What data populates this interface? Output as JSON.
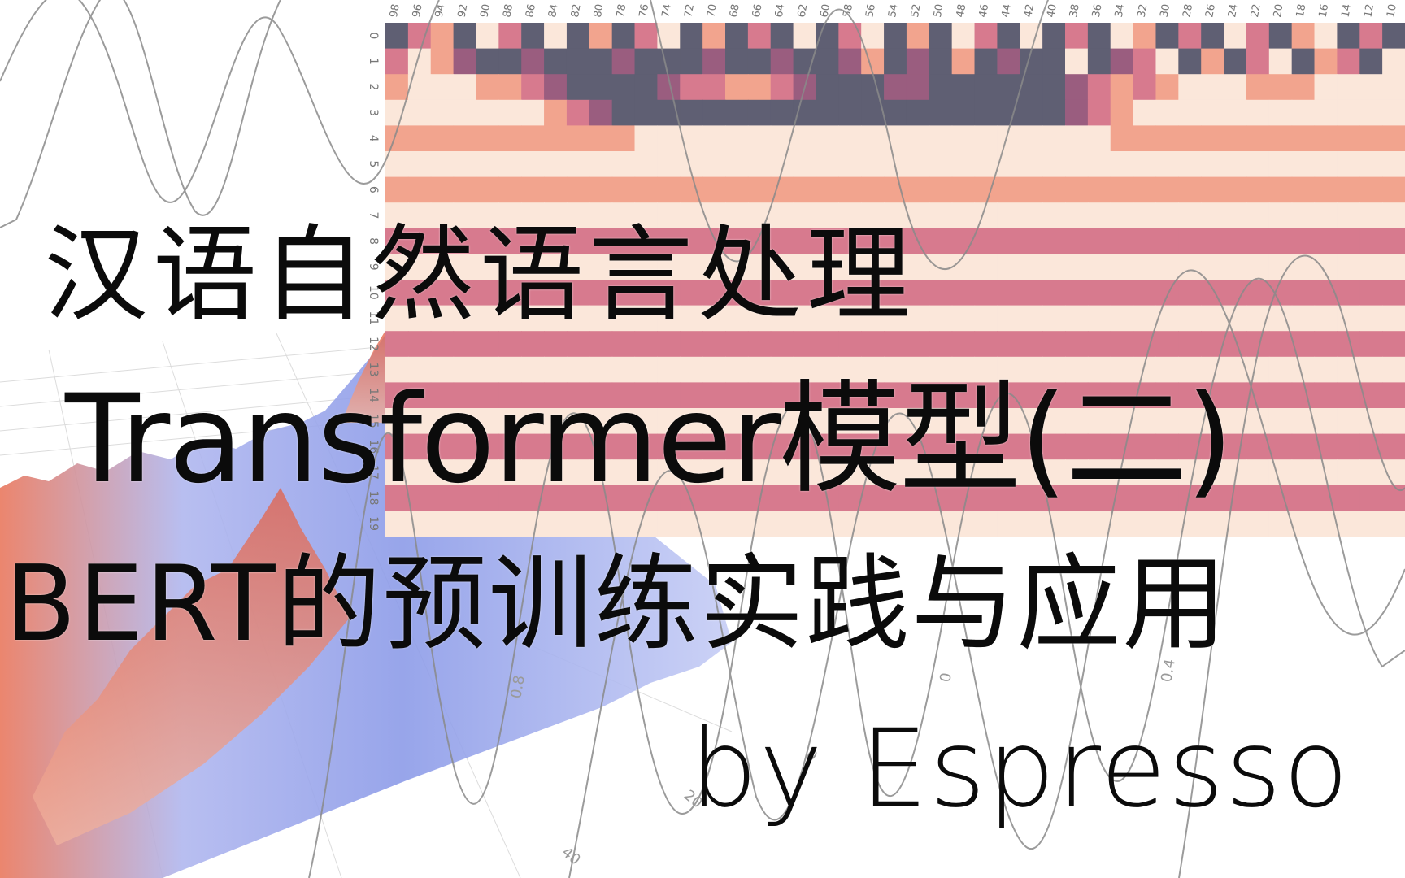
{
  "titles": {
    "line1": "汉语自然语言处理",
    "line2": "Transformer模型(二)",
    "line3": "BERT的预训练实践与应用"
  },
  "byline": "by Espresso",
  "heatmap": {
    "col_ticks": [
      "98",
      "96",
      "94",
      "92",
      "90",
      "88",
      "86",
      "84",
      "82",
      "80",
      "78",
      "76",
      "74",
      "72",
      "70",
      "68",
      "66",
      "64",
      "62",
      "60",
      "58",
      "56",
      "54",
      "52",
      "50",
      "48",
      "46",
      "44",
      "42",
      "40",
      "38",
      "36",
      "34",
      "32",
      "30",
      "28",
      "26",
      "24",
      "22",
      "20",
      "18",
      "16",
      "14",
      "12",
      "10"
    ],
    "row_ticks": [
      "0",
      "1",
      "2",
      "3",
      "4",
      "5",
      "6",
      "7",
      "8",
      "9",
      "10",
      "11",
      "12",
      "13",
      "14",
      "15",
      "16",
      "17",
      "18",
      "19"
    ],
    "palette": [
      "#5f5f73",
      "#9a5d7f",
      "#d77a8e",
      "#f2a48e",
      "#fbe7da"
    ],
    "row_levels": [
      [
        0,
        2,
        3,
        0,
        4,
        2,
        0,
        4,
        0,
        3,
        0,
        2,
        4,
        0,
        3,
        0,
        2,
        0,
        4,
        0,
        2,
        4,
        0,
        3,
        0,
        4,
        2,
        0,
        4,
        0,
        2,
        0,
        4,
        3,
        0,
        2,
        0,
        4,
        2,
        0,
        3,
        4,
        0,
        2,
        0
      ],
      [
        2,
        4,
        3,
        1,
        0,
        0,
        1,
        0,
        0,
        0,
        1,
        0,
        0,
        0,
        1,
        0,
        0,
        1,
        0,
        0,
        1,
        3,
        0,
        1,
        0,
        3,
        0,
        1,
        0,
        0,
        4,
        0,
        1,
        2,
        4,
        0,
        3,
        0,
        2,
        4,
        0,
        3,
        2,
        0,
        4
      ],
      [
        3,
        4,
        4,
        4,
        3,
        3,
        2,
        1,
        0,
        0,
        0,
        0,
        1,
        2,
        2,
        3,
        3,
        2,
        1,
        0,
        0,
        0,
        1,
        1,
        0,
        0,
        0,
        0,
        0,
        0,
        1,
        2,
        3,
        2,
        3,
        4,
        4,
        4,
        3,
        3,
        3,
        4,
        4,
        4,
        4
      ],
      [
        4,
        4,
        4,
        4,
        4,
        4,
        4,
        3,
        2,
        1,
        0,
        0,
        0,
        0,
        0,
        0,
        0,
        0,
        0,
        0,
        0,
        0,
        0,
        0,
        0,
        0,
        0,
        0,
        0,
        0,
        1,
        2,
        3,
        4,
        4,
        4,
        4,
        4,
        4,
        4,
        4,
        4,
        4,
        4,
        4
      ],
      [
        3,
        3,
        3,
        3,
        3,
        3,
        3,
        3,
        3,
        3,
        3,
        4,
        4,
        4,
        4,
        4,
        4,
        4,
        4,
        4,
        4,
        4,
        4,
        4,
        4,
        4,
        4,
        4,
        4,
        4,
        4,
        4,
        3,
        3,
        3,
        3,
        3,
        3,
        3,
        3,
        3,
        3,
        3,
        3,
        3
      ],
      [
        4,
        4,
        4,
        4,
        4,
        4,
        4,
        4,
        4,
        4,
        4,
        4,
        4,
        4,
        4,
        4,
        4,
        4,
        4,
        4,
        4,
        4,
        4,
        4,
        4,
        4,
        4,
        4,
        4,
        4,
        4,
        4,
        4,
        4,
        4,
        4,
        4,
        4,
        4,
        4,
        4,
        4,
        4,
        4,
        4
      ],
      [
        3,
        3,
        3,
        3,
        3,
        3,
        3,
        3,
        3,
        3,
        3,
        3,
        3,
        3,
        3,
        3,
        3,
        3,
        3,
        3,
        3,
        3,
        3,
        3,
        3,
        3,
        3,
        3,
        3,
        3,
        3,
        3,
        3,
        3,
        3,
        3,
        3,
        3,
        3,
        3,
        3,
        3,
        3,
        3,
        3
      ],
      [
        4,
        4,
        4,
        4,
        4,
        4,
        4,
        4,
        4,
        4,
        4,
        4,
        4,
        4,
        4,
        4,
        4,
        4,
        4,
        4,
        4,
        4,
        4,
        4,
        4,
        4,
        4,
        4,
        4,
        4,
        4,
        4,
        4,
        4,
        4,
        4,
        4,
        4,
        4,
        4,
        4,
        4,
        4,
        4,
        4
      ],
      [
        2,
        2,
        2,
        2,
        2,
        2,
        2,
        2,
        2,
        2,
        2,
        2,
        2,
        2,
        2,
        2,
        2,
        2,
        2,
        2,
        2,
        2,
        2,
        2,
        2,
        2,
        2,
        2,
        2,
        2,
        2,
        2,
        2,
        2,
        2,
        2,
        2,
        2,
        2,
        2,
        2,
        2,
        2,
        2,
        2
      ],
      [
        4,
        4,
        4,
        4,
        4,
        4,
        4,
        4,
        4,
        4,
        4,
        4,
        4,
        4,
        4,
        4,
        4,
        4,
        4,
        4,
        4,
        4,
        4,
        4,
        4,
        4,
        4,
        4,
        4,
        4,
        4,
        4,
        4,
        4,
        4,
        4,
        4,
        4,
        4,
        4,
        4,
        4,
        4,
        4,
        4
      ],
      [
        2,
        2,
        2,
        2,
        2,
        2,
        2,
        2,
        2,
        2,
        2,
        2,
        2,
        2,
        2,
        2,
        2,
        2,
        2,
        2,
        2,
        2,
        2,
        2,
        2,
        2,
        2,
        2,
        2,
        2,
        2,
        2,
        2,
        2,
        2,
        2,
        2,
        2,
        2,
        2,
        2,
        2,
        2,
        2,
        2
      ],
      [
        4,
        4,
        4,
        4,
        4,
        4,
        4,
        4,
        4,
        4,
        4,
        4,
        4,
        4,
        4,
        4,
        4,
        4,
        4,
        4,
        4,
        4,
        4,
        4,
        4,
        4,
        4,
        4,
        4,
        4,
        4,
        4,
        4,
        4,
        4,
        4,
        4,
        4,
        4,
        4,
        4,
        4,
        4,
        4,
        4
      ],
      [
        2,
        2,
        2,
        2,
        2,
        2,
        2,
        2,
        2,
        2,
        2,
        2,
        2,
        2,
        2,
        2,
        2,
        2,
        2,
        2,
        2,
        2,
        2,
        2,
        2,
        2,
        2,
        2,
        2,
        2,
        2,
        2,
        2,
        2,
        2,
        2,
        2,
        2,
        2,
        2,
        2,
        2,
        2,
        2,
        2
      ],
      [
        4,
        4,
        4,
        4,
        4,
        4,
        4,
        4,
        4,
        4,
        4,
        4,
        4,
        4,
        4,
        4,
        4,
        4,
        4,
        4,
        4,
        4,
        4,
        4,
        4,
        4,
        4,
        4,
        4,
        4,
        4,
        4,
        4,
        4,
        4,
        4,
        4,
        4,
        4,
        4,
        4,
        4,
        4,
        4,
        4
      ],
      [
        2,
        2,
        2,
        2,
        2,
        2,
        2,
        2,
        2,
        2,
        2,
        2,
        2,
        2,
        2,
        2,
        2,
        2,
        2,
        2,
        2,
        2,
        2,
        2,
        2,
        2,
        2,
        2,
        2,
        2,
        2,
        2,
        2,
        2,
        2,
        2,
        2,
        2,
        2,
        2,
        2,
        2,
        2,
        2,
        2
      ],
      [
        4,
        4,
        4,
        4,
        4,
        4,
        4,
        4,
        4,
        4,
        4,
        4,
        4,
        4,
        4,
        4,
        4,
        4,
        4,
        4,
        4,
        4,
        4,
        4,
        4,
        4,
        4,
        4,
        4,
        4,
        4,
        4,
        4,
        4,
        4,
        4,
        4,
        4,
        4,
        4,
        4,
        4,
        4,
        4,
        4
      ],
      [
        2,
        2,
        2,
        2,
        2,
        2,
        2,
        2,
        2,
        2,
        2,
        2,
        2,
        2,
        2,
        2,
        2,
        2,
        2,
        2,
        2,
        2,
        2,
        2,
        2,
        2,
        2,
        2,
        2,
        2,
        2,
        2,
        2,
        2,
        2,
        2,
        2,
        2,
        2,
        2,
        2,
        2,
        2,
        2,
        2
      ],
      [
        4,
        4,
        4,
        4,
        4,
        4,
        4,
        4,
        4,
        4,
        4,
        4,
        4,
        4,
        4,
        4,
        4,
        4,
        4,
        4,
        4,
        4,
        4,
        4,
        4,
        4,
        4,
        4,
        4,
        4,
        4,
        4,
        4,
        4,
        4,
        4,
        4,
        4,
        4,
        4,
        4,
        4,
        4,
        4,
        4
      ],
      [
        2,
        2,
        2,
        2,
        2,
        2,
        2,
        2,
        2,
        2,
        2,
        2,
        2,
        2,
        2,
        2,
        2,
        2,
        2,
        2,
        2,
        2,
        2,
        2,
        2,
        2,
        2,
        2,
        2,
        2,
        2,
        2,
        2,
        2,
        2,
        2,
        2,
        2,
        2,
        2,
        2,
        2,
        2,
        2,
        2
      ],
      [
        4,
        4,
        4,
        4,
        4,
        4,
        4,
        4,
        4,
        4,
        4,
        4,
        4,
        4,
        4,
        4,
        4,
        4,
        4,
        4,
        4,
        4,
        4,
        4,
        4,
        4,
        4,
        4,
        4,
        4,
        4,
        4,
        4,
        4,
        4,
        4,
        4,
        4,
        4,
        4,
        4,
        4,
        4,
        4,
        4
      ]
    ]
  },
  "surface_ticks": [
    "0.8",
    "0",
    "20",
    "40",
    "0.4",
    "0"
  ],
  "colors": {
    "text": "#0b0b0b",
    "curve": "#8a8a8a",
    "surface_blue": "#8c9be8",
    "surface_red": "#e0735c"
  }
}
